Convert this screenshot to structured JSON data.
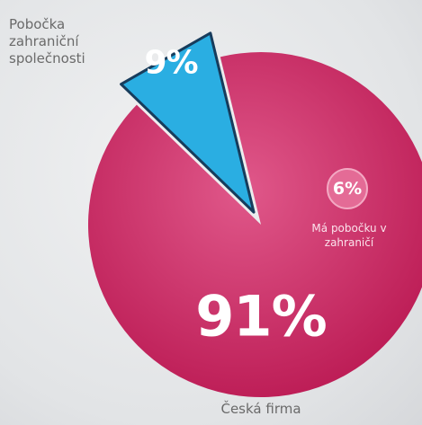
{
  "chart_data": {
    "type": "pie",
    "categories": [
      "Pobočka zahraniční společnosti",
      "Česká firma"
    ],
    "values": [
      9,
      91
    ],
    "value_labels": [
      "9%",
      "91%"
    ],
    "colors": [
      "#2aaee2",
      "#c91f5d"
    ],
    "annotation": {
      "value": 6,
      "value_label": "6%",
      "text": "Má pobočku v zahraničí"
    }
  }
}
